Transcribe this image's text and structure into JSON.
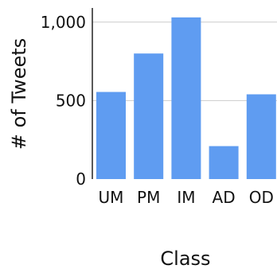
{
  "chart_data": {
    "type": "bar",
    "categories": [
      "UM",
      "PM",
      "IM",
      "AD",
      "OD"
    ],
    "values": [
      555,
      800,
      1030,
      210,
      540
    ],
    "title": "",
    "xlabel": "Class",
    "ylabel": "# of Tweets",
    "ylim": [
      0,
      1080
    ],
    "yticks": [
      0,
      500,
      1000
    ],
    "ytick_labels": [
      "0",
      "500",
      "1,000"
    ],
    "grid": true,
    "colors": {
      "bar": "#5f9cf1",
      "grid": "#cccccc",
      "axis": "#222222"
    }
  }
}
